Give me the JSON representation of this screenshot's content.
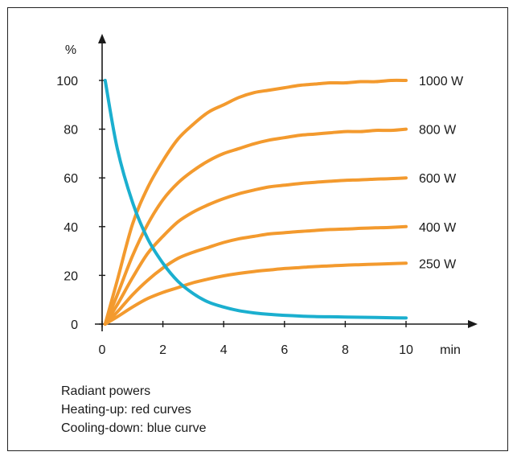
{
  "colors": {
    "heating": "#F39A2E",
    "cooling": "#1BAFCF",
    "axis": "#1a1a1a"
  },
  "caption": {
    "line1": "Radiant powers",
    "line2": "Heating-up: red curves",
    "line3": "Cooling-down: blue curve"
  },
  "chart_data": {
    "type": "line",
    "title": "",
    "xlabel": "min",
    "ylabel": "%",
    "xlim": [
      0,
      10
    ],
    "ylim": [
      0,
      100
    ],
    "x_ticks": [
      0,
      2,
      4,
      6,
      8,
      10
    ],
    "y_ticks": [
      0,
      20,
      40,
      60,
      80,
      100
    ],
    "grid": false,
    "legend": "labels at right end of curves",
    "x": [
      0.1,
      0.5,
      1,
      1.5,
      2,
      2.5,
      3,
      3.5,
      4,
      4.5,
      5,
      5.5,
      6,
      6.5,
      7,
      7.5,
      8,
      8.5,
      9,
      9.5,
      10
    ],
    "series": [
      {
        "name": "1000 W",
        "group": "heating",
        "values": [
          0,
          18,
          41,
          56,
          67,
          76,
          82,
          87,
          90,
          93,
          95,
          96,
          97,
          98,
          98.5,
          99,
          99,
          99.5,
          99.5,
          100,
          100
        ]
      },
      {
        "name": "800 W",
        "group": "heating",
        "values": [
          0,
          12,
          28,
          41,
          51,
          58,
          63,
          67,
          70,
          72,
          74,
          75.5,
          76.5,
          77.5,
          78,
          78.5,
          79,
          79,
          79.5,
          79.5,
          80
        ]
      },
      {
        "name": "600 W",
        "group": "heating",
        "values": [
          0,
          8,
          19,
          29,
          36,
          42,
          46,
          49,
          51.5,
          53.5,
          55,
          56.3,
          57,
          57.7,
          58.2,
          58.6,
          59,
          59.2,
          59.5,
          59.7,
          60
        ]
      },
      {
        "name": "400 W",
        "group": "heating",
        "values": [
          0,
          5,
          12,
          18,
          23,
          27,
          29.5,
          31.5,
          33.5,
          35,
          36,
          37,
          37.5,
          38,
          38.4,
          38.8,
          39,
          39.3,
          39.5,
          39.7,
          40
        ]
      },
      {
        "name": "250 W",
        "group": "heating",
        "values": [
          0,
          3,
          7,
          10.5,
          13,
          15,
          17,
          18.5,
          19.8,
          20.8,
          21.6,
          22.2,
          22.8,
          23.2,
          23.6,
          23.9,
          24.2,
          24.4,
          24.6,
          24.8,
          25
        ]
      },
      {
        "name": "",
        "group": "cooling",
        "values": [
          100,
          72,
          50,
          35,
          25,
          17.5,
          12.5,
          9,
          7,
          5.5,
          4.6,
          4,
          3.6,
          3.3,
          3.1,
          3,
          2.9,
          2.8,
          2.7,
          2.6,
          2.5
        ]
      }
    ]
  }
}
